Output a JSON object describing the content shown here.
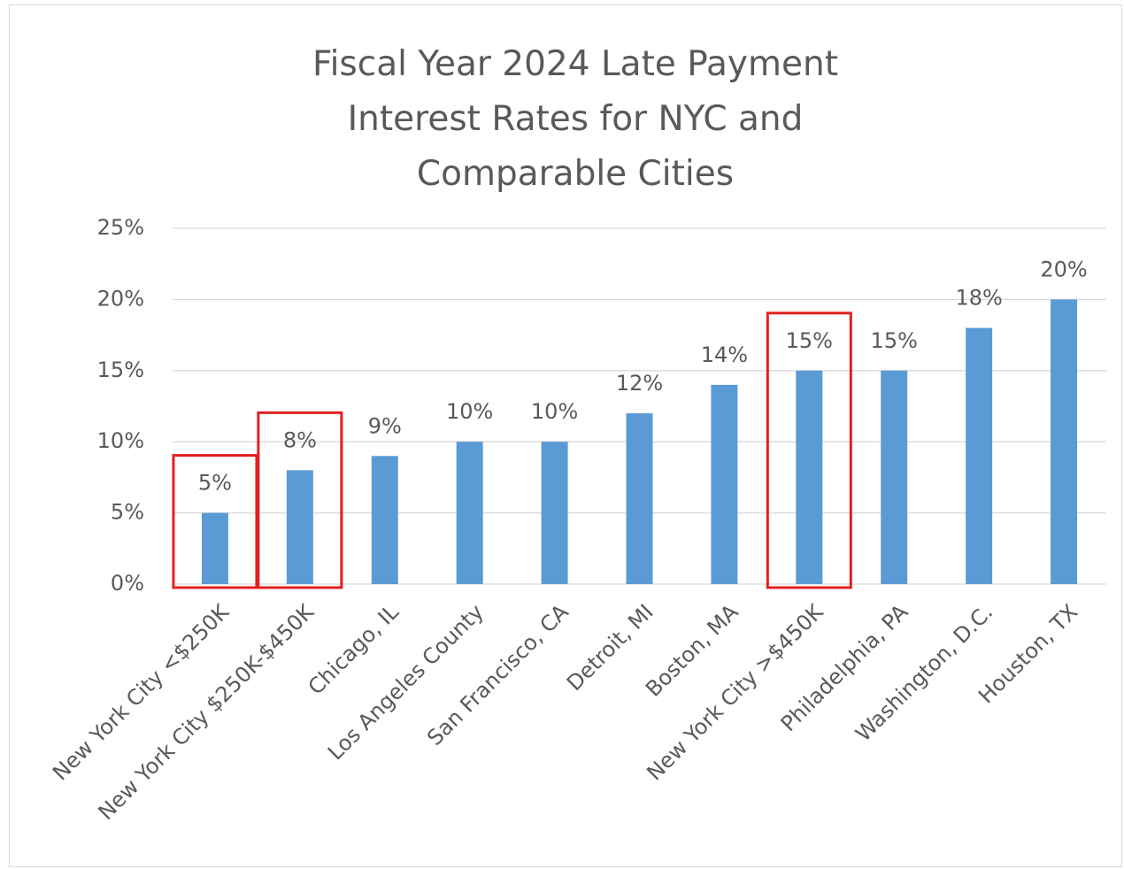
{
  "chart_data": {
    "type": "bar",
    "title": "Fiscal Year 2024 Late Payment Interest Rates for NYC and Comparable Cities",
    "categories": [
      "New York City <$250K",
      "New York City $250K-$450K",
      "Chicago, IL",
      "Los Angeles County",
      "San Francisco, CA",
      "Detroit, MI",
      "Boston, MA",
      "New York City >$450K",
      "Philadelphia, PA",
      "Washington, D.C.",
      "Houston, TX"
    ],
    "values": [
      5,
      8,
      9,
      10,
      10,
      12,
      14,
      15,
      15,
      18,
      20
    ],
    "value_labels": [
      "5%",
      "8%",
      "9%",
      "10%",
      "10%",
      "12%",
      "14%",
      "15%",
      "15%",
      "18%",
      "20%"
    ],
    "color": "#5b9bd5",
    "ylim": [
      0,
      25
    ],
    "yticks": [
      {
        "value": 0,
        "label": "0%"
      },
      {
        "value": 5,
        "label": "5%"
      },
      {
        "value": 10,
        "label": "10%"
      },
      {
        "value": 15,
        "label": "15%"
      },
      {
        "value": 20,
        "label": "20%"
      },
      {
        "value": 25,
        "label": "25%"
      }
    ],
    "grid": true,
    "highlighted_categories": [
      0,
      1,
      7
    ],
    "highlight_color": "#e02020"
  }
}
